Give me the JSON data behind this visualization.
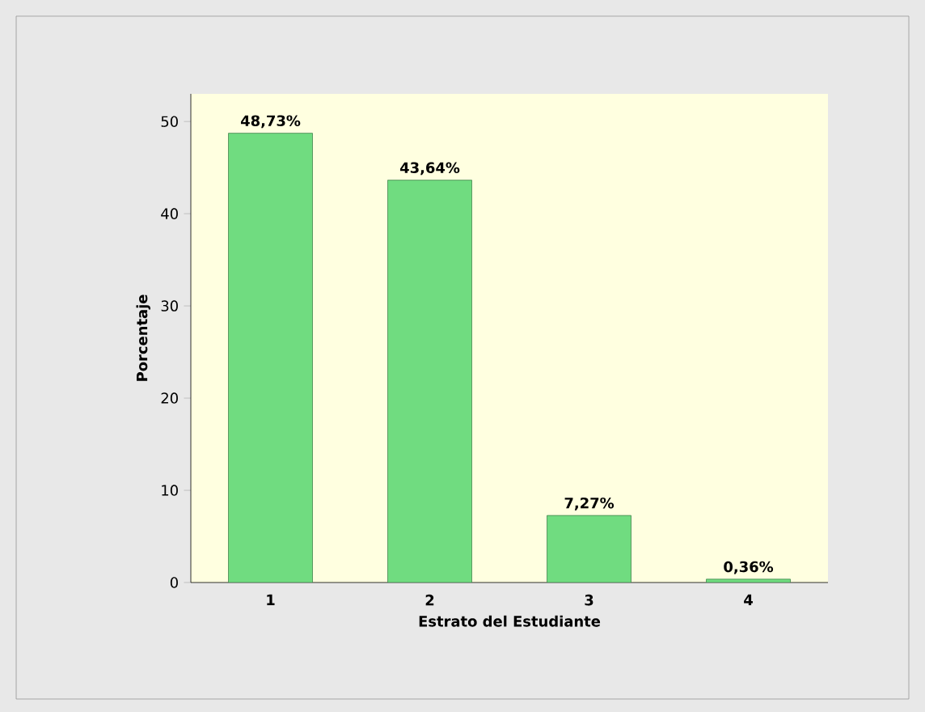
{
  "chart_data": {
    "type": "bar",
    "xlabel": "Estrato del Estudiante",
    "ylabel": "Porcentaje",
    "categories": [
      "1",
      "2",
      "3",
      "4"
    ],
    "values": [
      48.73,
      43.64,
      7.27,
      0.36
    ],
    "value_labels": [
      "48,73%",
      "43,64%",
      "7,27%",
      "0,36%"
    ],
    "color": "#70dc80",
    "ylim": [
      0,
      53
    ],
    "yticks": [
      0,
      10,
      20,
      30,
      40,
      50
    ]
  }
}
